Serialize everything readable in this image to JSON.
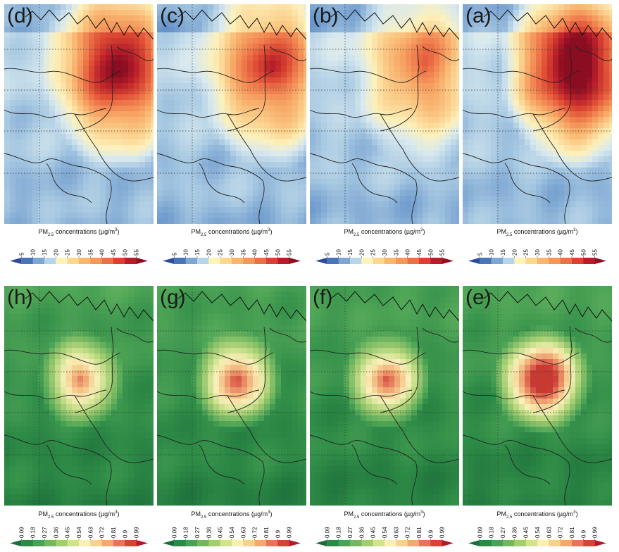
{
  "colorbar_title": {
    "prefix": "PM",
    "subscript": "2.5",
    "middle": " concentrations (µg/m",
    "superscript": "3",
    "suffix": ")"
  },
  "rows": [
    {
      "scheme": "concentration",
      "panels": [
        {
          "label": "(d)",
          "intensity": 0.78
        },
        {
          "label": "(c)",
          "intensity": 0.62
        },
        {
          "label": "(b)",
          "intensity": 0.48
        },
        {
          "label": "(a)",
          "intensity": 0.9
        }
      ],
      "colorbar": {
        "ticks": [
          "5",
          "10",
          "15",
          "20",
          "25",
          "30",
          "35",
          "40",
          "45",
          "50",
          "55"
        ],
        "colors": [
          "#2b4c9b",
          "#4a74b8",
          "#7ea6d3",
          "#b7d5e8",
          "#fff3b8",
          "#fdd78a",
          "#fcb66b",
          "#f89656",
          "#ef6e45",
          "#dd3f33",
          "#b61e2a",
          "#8e0f22"
        ]
      }
    },
    {
      "scheme": "ratio",
      "panels": [
        {
          "label": "(h)",
          "intensity": 0.62
        },
        {
          "label": "(g)",
          "intensity": 0.7
        },
        {
          "label": "(f)",
          "intensity": 0.66
        },
        {
          "label": "(e)",
          "intensity": 0.9
        }
      ],
      "colorbar": {
        "ticks": [
          "0.09",
          "0.18",
          "0.27",
          "0.36",
          "0.45",
          "0.54",
          "0.63",
          "0.72",
          "0.81",
          "0.9",
          "0.99"
        ],
        "colors": [
          "#1b6e3a",
          "#2d8a45",
          "#4ba155",
          "#74b760",
          "#a3cd72",
          "#d2e38f",
          "#fbefb5",
          "#f8d092",
          "#f2a873",
          "#e6735a",
          "#d44536",
          "#b2192b"
        ]
      }
    }
  ]
}
